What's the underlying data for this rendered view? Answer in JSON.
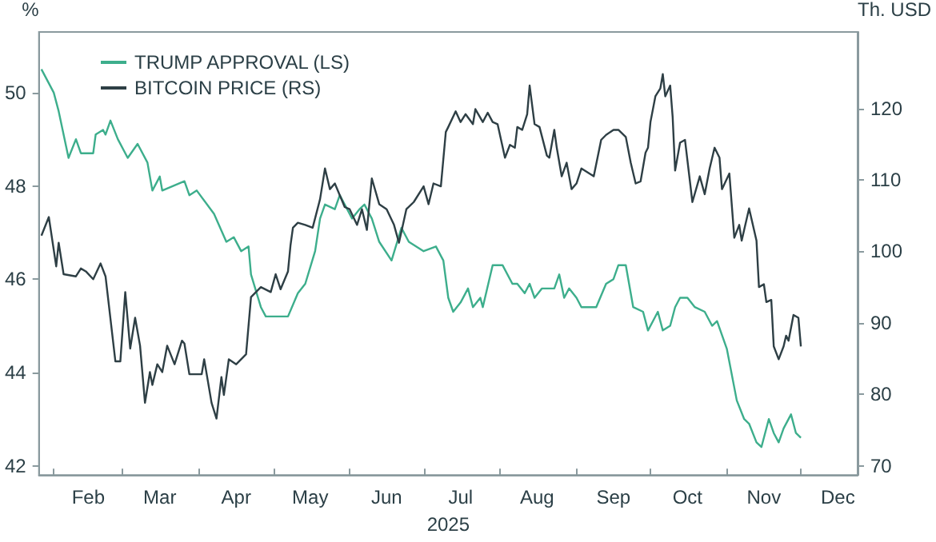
{
  "chart_data": {
    "type": "line",
    "ylabel": "%",
    "y2label": "Th. USD",
    "xlabel": "2025",
    "xlim": [
      "2025-01-26",
      "2025-12-24"
    ],
    "xticks": [
      {
        "value": "2025-02-01",
        "label": null
      },
      {
        "value": "2025-02-15",
        "label": "Feb"
      },
      {
        "value": "2025-03-01",
        "label": null
      },
      {
        "value": "2025-03-16",
        "label": "Mar"
      },
      {
        "value": "2025-04-01",
        "label": null
      },
      {
        "value": "2025-04-16",
        "label": "Apr"
      },
      {
        "value": "2025-05-01",
        "label": null
      },
      {
        "value": "2025-05-16",
        "label": "May"
      },
      {
        "value": "2025-06-01",
        "label": null
      },
      {
        "value": "2025-06-16",
        "label": "Jun"
      },
      {
        "value": "2025-07-01",
        "label": null
      },
      {
        "value": "2025-07-16",
        "label": "Jul"
      },
      {
        "value": "2025-08-01",
        "label": null
      },
      {
        "value": "2025-08-16",
        "label": "Aug"
      },
      {
        "value": "2025-09-01",
        "label": null
      },
      {
        "value": "2025-09-16",
        "label": "Sep"
      },
      {
        "value": "2025-10-01",
        "label": null
      },
      {
        "value": "2025-10-16",
        "label": "Oct"
      },
      {
        "value": "2025-11-01",
        "label": null
      },
      {
        "value": "2025-11-16",
        "label": "Nov"
      },
      {
        "value": "2025-12-01",
        "label": null
      },
      {
        "value": "2025-12-16",
        "label": "Dec"
      }
    ],
    "ylim": [
      41.8,
      51.3
    ],
    "yticks": [
      42,
      44,
      46,
      48,
      50
    ],
    "y2lim": [
      68.7,
      130.7
    ],
    "y2ticks": [
      70,
      80,
      90,
      100,
      110,
      120
    ],
    "grid": false,
    "legend": "top left",
    "marker": "none",
    "line_style": "solid",
    "series": [
      {
        "name": "TRUMP APPROVAL (LS)",
        "color": "#3dae8c",
        "x": [
          "2025-01-27",
          "2025-01-30",
          "2025-02-01",
          "2025-02-03",
          "2025-02-07",
          "2025-02-10",
          "2025-02-12",
          "2025-02-17",
          "2025-02-18",
          "2025-02-21",
          "2025-02-22",
          "2025-02-24",
          "2025-02-27",
          "2025-03-03",
          "2025-03-07",
          "2025-03-11",
          "2025-03-13",
          "2025-03-16",
          "2025-03-17",
          "2025-03-26",
          "2025-03-28",
          "2025-03-31",
          "2025-04-07",
          "2025-04-12",
          "2025-04-15",
          "2025-04-18",
          "2025-04-21",
          "2025-04-22",
          "2025-04-26",
          "2025-04-28",
          "2025-05-03",
          "2025-05-07",
          "2025-05-11",
          "2025-05-14",
          "2025-05-18",
          "2025-05-20",
          "2025-05-22",
          "2025-05-26",
          "2025-05-28",
          "2025-05-31",
          "2025-06-02",
          "2025-06-05",
          "2025-06-07",
          "2025-06-10",
          "2025-06-13",
          "2025-06-18",
          "2025-06-22",
          "2025-06-25",
          "2025-07-01",
          "2025-07-06",
          "2025-07-09",
          "2025-07-11",
          "2025-07-13",
          "2025-07-16",
          "2025-07-19",
          "2025-07-21",
          "2025-07-24",
          "2025-07-25",
          "2025-07-29",
          "2025-08-02",
          "2025-08-06",
          "2025-08-08",
          "2025-08-11",
          "2025-08-13",
          "2025-08-15",
          "2025-08-18",
          "2025-08-23",
          "2025-08-25",
          "2025-08-27",
          "2025-08-29",
          "2025-09-01",
          "2025-09-03",
          "2025-09-09",
          "2025-09-13",
          "2025-09-16",
          "2025-09-18",
          "2025-09-21",
          "2025-09-24",
          "2025-09-28",
          "2025-09-30",
          "2025-10-02",
          "2025-10-04",
          "2025-10-06",
          "2025-10-09",
          "2025-10-11",
          "2025-10-13",
          "2025-10-16",
          "2025-10-19",
          "2025-10-23",
          "2025-10-26",
          "2025-10-28",
          "2025-11-01",
          "2025-11-05",
          "2025-11-08",
          "2025-11-10",
          "2025-11-13",
          "2025-11-15",
          "2025-11-18",
          "2025-11-20",
          "2025-11-22",
          "2025-11-24",
          "2025-11-27",
          "2025-11-29",
          "2025-12-01"
        ],
        "values": [
          50.5,
          50.2,
          50.0,
          49.6,
          48.6,
          49.0,
          48.7,
          48.7,
          49.1,
          49.2,
          49.1,
          49.4,
          49.0,
          48.6,
          48.9,
          48.5,
          47.9,
          48.2,
          47.9,
          48.1,
          47.8,
          47.9,
          47.4,
          46.8,
          46.9,
          46.6,
          46.7,
          46.1,
          45.4,
          45.2,
          45.2,
          45.2,
          45.7,
          45.9,
          46.6,
          47.3,
          47.6,
          47.5,
          47.8,
          47.5,
          47.3,
          47.5,
          47.6,
          47.3,
          46.8,
          46.4,
          47.1,
          46.8,
          46.6,
          46.7,
          46.4,
          45.6,
          45.3,
          45.5,
          45.8,
          45.4,
          45.6,
          45.4,
          46.3,
          46.3,
          45.9,
          45.9,
          45.7,
          45.9,
          45.6,
          45.8,
          45.8,
          46.1,
          45.6,
          45.8,
          45.6,
          45.4,
          45.4,
          45.9,
          46.0,
          46.3,
          46.3,
          45.4,
          45.3,
          44.9,
          45.1,
          45.3,
          44.9,
          45.0,
          45.4,
          45.6,
          45.6,
          45.4,
          45.3,
          45.0,
          45.1,
          44.5,
          43.4,
          43.0,
          42.9,
          42.5,
          42.4,
          43.0,
          42.7,
          42.5,
          42.8,
          43.1,
          42.7,
          42.6
        ]
      },
      {
        "name": "BITCOIN PRICE (RS)",
        "color": "#2e3f45",
        "axis": "y2",
        "x": [
          "2025-01-27",
          "2025-01-30",
          "2025-02-02",
          "2025-02-03",
          "2025-02-05",
          "2025-02-10",
          "2025-02-12",
          "2025-02-14",
          "2025-02-17",
          "2025-02-20",
          "2025-02-22",
          "2025-02-26",
          "2025-02-28",
          "2025-03-02",
          "2025-03-04",
          "2025-03-06",
          "2025-03-08",
          "2025-03-10",
          "2025-03-12",
          "2025-03-13",
          "2025-03-15",
          "2025-03-17",
          "2025-03-19",
          "2025-03-22",
          "2025-03-25",
          "2025-03-26",
          "2025-03-28",
          "2025-04-02",
          "2025-04-03",
          "2025-04-06",
          "2025-04-08",
          "2025-04-10",
          "2025-04-11",
          "2025-04-13",
          "2025-04-16",
          "2025-04-20",
          "2025-04-22",
          "2025-04-26",
          "2025-04-30",
          "2025-05-02",
          "2025-05-04",
          "2025-05-07",
          "2025-05-08",
          "2025-05-09",
          "2025-05-11",
          "2025-05-14",
          "2025-05-17",
          "2025-05-20",
          "2025-05-22",
          "2025-05-24",
          "2025-05-26",
          "2025-05-30",
          "2025-06-01",
          "2025-06-04",
          "2025-06-06",
          "2025-06-08",
          "2025-06-10",
          "2025-06-13",
          "2025-06-16",
          "2025-06-19",
          "2025-06-21",
          "2025-06-24",
          "2025-06-27",
          "2025-07-01",
          "2025-07-03",
          "2025-07-05",
          "2025-07-08",
          "2025-07-10",
          "2025-07-11",
          "2025-07-14",
          "2025-07-16",
          "2025-07-18",
          "2025-07-21",
          "2025-07-22",
          "2025-07-25",
          "2025-07-27",
          "2025-07-29",
          "2025-07-31",
          "2025-08-03",
          "2025-08-05",
          "2025-08-07",
          "2025-08-08",
          "2025-08-10",
          "2025-08-12",
          "2025-08-13",
          "2025-08-15",
          "2025-08-17",
          "2025-08-20",
          "2025-08-21",
          "2025-08-23",
          "2025-08-24",
          "2025-08-26",
          "2025-08-28",
          "2025-08-30",
          "2025-09-01",
          "2025-09-03",
          "2025-09-08",
          "2025-09-11",
          "2025-09-13",
          "2025-09-16",
          "2025-09-18",
          "2025-09-21",
          "2025-09-23",
          "2025-09-25",
          "2025-09-27",
          "2025-09-29",
          "2025-09-30",
          "2025-10-01",
          "2025-10-03",
          "2025-10-05",
          "2025-10-06",
          "2025-10-07",
          "2025-10-09",
          "2025-10-10",
          "2025-10-11",
          "2025-10-13",
          "2025-10-15",
          "2025-10-18",
          "2025-10-21",
          "2025-10-23",
          "2025-10-25",
          "2025-10-27",
          "2025-10-29",
          "2025-10-30",
          "2025-11-02",
          "2025-11-04",
          "2025-11-06",
          "2025-11-07",
          "2025-11-08",
          "2025-11-10",
          "2025-11-13",
          "2025-11-14",
          "2025-11-16",
          "2025-11-17",
          "2025-11-19",
          "2025-11-20",
          "2025-11-22",
          "2025-11-24",
          "2025-11-25",
          "2025-11-26",
          "2025-11-28",
          "2025-11-30",
          "2025-12-01"
        ],
        "values": [
          102.2,
          104.8,
          97.9,
          101.2,
          96.8,
          96.5,
          97.6,
          97.2,
          96.1,
          98.3,
          96.5,
          84.6,
          84.6,
          94.3,
          86.4,
          90.7,
          86.8,
          78.8,
          83.1,
          81.3,
          84.2,
          83.1,
          86.8,
          84.2,
          87.5,
          87.1,
          82.8,
          82.8,
          84.9,
          78.8,
          76.6,
          82.4,
          79.9,
          84.9,
          84.2,
          85.6,
          93.6,
          95.0,
          94.3,
          96.8,
          94.7,
          97.2,
          100.8,
          103.3,
          104.0,
          103.7,
          103.3,
          107.3,
          111.6,
          108.7,
          109.5,
          106.2,
          105.9,
          103.7,
          105.9,
          103.0,
          110.2,
          106.6,
          105.9,
          103.7,
          101.2,
          105.9,
          106.9,
          109.1,
          106.6,
          109.5,
          109.1,
          116.7,
          117.4,
          119.6,
          118.1,
          119.2,
          117.8,
          119.9,
          118.1,
          119.4,
          118.1,
          117.8,
          113.1,
          114.9,
          114.5,
          117.4,
          117.0,
          119.2,
          123.2,
          117.8,
          117.4,
          113.4,
          113.1,
          117.0,
          114.5,
          110.5,
          112.4,
          108.7,
          109.5,
          111.6,
          110.5,
          115.6,
          116.3,
          117.0,
          117.0,
          116.0,
          112.4,
          109.5,
          109.8,
          113.8,
          114.5,
          118.1,
          121.7,
          122.8,
          124.8,
          121.7,
          123.2,
          118.8,
          111.3,
          115.2,
          115.6,
          106.9,
          110.5,
          108.0,
          111.6,
          114.5,
          113.1,
          108.7,
          110.9,
          101.9,
          103.7,
          101.5,
          103.0,
          106.0,
          101.5,
          95.0,
          95.4,
          92.9,
          93.2,
          86.7,
          84.9,
          86.7,
          88.2,
          87.5,
          91.1,
          90.7,
          86.7
        ]
      }
    ]
  }
}
